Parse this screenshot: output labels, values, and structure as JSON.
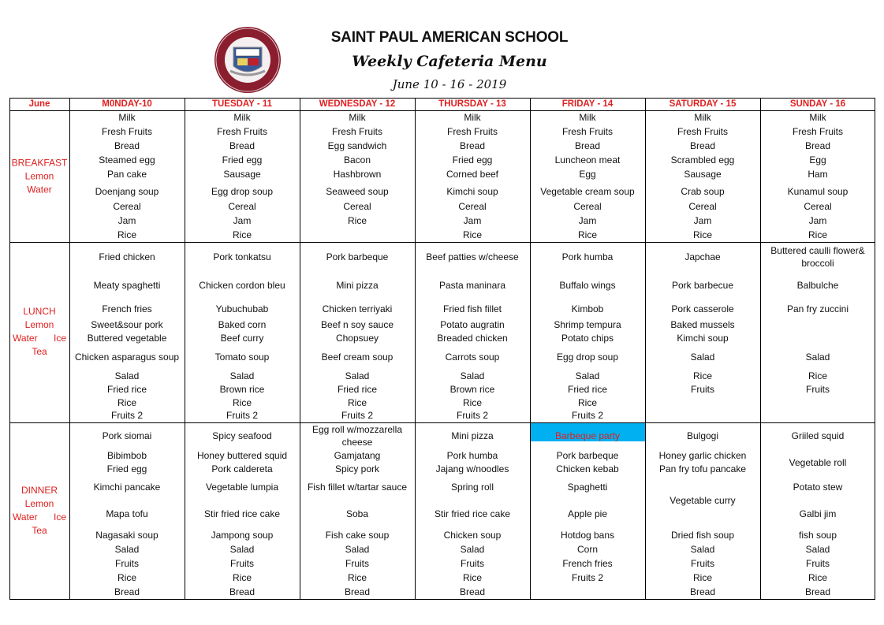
{
  "header": {
    "school": "SAINT PAUL AMERICAN SCHOOL",
    "subtitle": "Weekly Cafeteria Menu",
    "dates": "June 10 - 16 - 2019",
    "logo_text": "SAINT PAUL AMERICAN SCHOOL"
  },
  "table": {
    "corner": "June",
    "days": [
      "M0NDAY-10",
      "TUESDAY - 11",
      "WEDNESDAY - 12",
      "THURSDAY - 13",
      "FRIDAY - 14",
      "SATURDAY - 15",
      "SUNDAY - 16"
    ],
    "meals": [
      {
        "key": "breakfast",
        "label_lines": [
          "BREAKFAST",
          "Lemon",
          "Water"
        ],
        "columns": [
          [
            "Milk",
            "Fresh Fruits",
            "Bread",
            "Steamed egg",
            "Pan cake",
            "Doenjang soup",
            "Cereal",
            "Jam",
            "Rice"
          ],
          [
            "Milk",
            "Fresh Fruits",
            "Bread",
            "Fried egg",
            "Sausage",
            "Egg drop soup",
            "Cereal",
            "Jam",
            "Rice"
          ],
          [
            "Milk",
            "Fresh Fruits",
            "Egg sandwich",
            "Bacon",
            "Hashbrown",
            "Seaweed soup",
            "Cereal",
            "Rice",
            ""
          ],
          [
            "Milk",
            "Fresh Fruits",
            "Bread",
            "Fried egg",
            "Corned beef",
            "Kimchi soup",
            "Cereal",
            "Jam",
            "Rice"
          ],
          [
            "Milk",
            "Fresh Fruits",
            "Bread",
            "Luncheon meat",
            "Egg",
            "Vegetable cream soup",
            "Cereal",
            "Jam",
            "Rice"
          ],
          [
            "Milk",
            "Fresh Fruits",
            "Bread",
            "Scrambled egg",
            "Sausage",
            "Crab soup",
            "Cereal",
            "Jam",
            "Rice"
          ],
          [
            "Milk",
            "Fresh Fruits",
            "Bread",
            "Egg",
            "Ham",
            "Kunamul soup",
            "Cereal",
            "Jam",
            "Rice"
          ]
        ]
      },
      {
        "key": "lunch",
        "label_lines": [
          "LUNCH",
          "Lemon",
          "Water Ice",
          "Tea"
        ],
        "columns": [
          [
            "Fried chicken",
            "Meaty spaghetti",
            "French fries",
            "Sweet&sour pork",
            "Buttered vegetable",
            "Chicken asparagus soup",
            "Salad",
            "Fried rice",
            "Rice",
            "Fruits 2"
          ],
          [
            "Pork tonkatsu",
            "Chicken cordon bleu",
            "Yubuchubab",
            "Baked corn",
            "Beef curry",
            "Tomato soup",
            "Salad",
            "Brown rice",
            "Rice",
            "Fruits 2"
          ],
          [
            "Pork barbeque",
            "Mini pizza",
            "Chicken terriyaki",
            "Beef n soy sauce",
            "Chopsuey",
            "Beef cream soup",
            "Salad",
            "Fried rice",
            "Rice",
            "Fruits 2"
          ],
          [
            "Beef patties w/cheese",
            "Pasta maninara",
            "Fried fish fillet",
            "Potato augratin",
            "Breaded chicken",
            "Carrots soup",
            "Salad",
            "Brown rice",
            "Rice",
            "Fruits 2"
          ],
          [
            "Pork humba",
            "Buffalo wings",
            "Kimbob",
            "Shrimp tempura",
            "Potato chips",
            "Egg drop soup",
            "Salad",
            "Fried rice",
            "Rice",
            "Fruits 2"
          ],
          [
            "Japchae",
            "Pork barbecue",
            "Pork casserole",
            "Baked mussels",
            "Kimchi soup",
            "Salad",
            "Rice",
            "Fruits",
            "",
            ""
          ],
          [
            "Buttered caulli flower& broccoli",
            "Balbulche",
            "Pan fry zuccini",
            "",
            "",
            "Salad",
            "Rice",
            "Fruits",
            "",
            ""
          ]
        ]
      },
      {
        "key": "dinner",
        "label_lines": [
          "DINNER",
          "Lemon",
          "Water Ice",
          "Tea"
        ],
        "columns": [
          [
            "Pork siomai",
            "Bibimbob",
            "Fried egg",
            "Kimchi pancake",
            "Mapa tofu",
            "Nagasaki soup",
            "Salad",
            "Fruits",
            "Rice",
            "Bread"
          ],
          [
            "Spicy seafood",
            "Honey buttered squid",
            "Pork caldereta",
            "Vegetable lumpia",
            "Stir fried rice cake",
            "Jampong soup",
            "Salad",
            "Fruits",
            "Rice",
            "Bread"
          ],
          [
            "Egg roll w/mozzarella cheese",
            "Gamjatang",
            "Spicy pork",
            "Fish fillet w/tartar sauce",
            "Soba",
            "Fish cake soup",
            "Salad",
            "Fruits",
            "Rice",
            "Bread"
          ],
          [
            "Mini pizza",
            "Pork humba",
            "Jajang w/noodles",
            "Spring roll",
            "Stir fried rice cake",
            "Chicken soup",
            "Salad",
            "Fruits",
            "Rice",
            "Bread"
          ],
          [
            "Barbeque party",
            "Pork barbeque",
            "Chicken kebab",
            "Spaghetti",
            "Apple pie",
            "Hotdog bans",
            "Corn",
            "French fries",
            "Fruits 2",
            ""
          ],
          [
            "Bulgogi",
            "Honey garlic chicken",
            "Pan fry tofu pancake",
            "Vegetable curry",
            null,
            "Dried fish soup",
            "Salad",
            "Fruits",
            "Rice",
            "Bread"
          ],
          [
            "Griiled squid",
            "Vegetable roll",
            null,
            "Potato stew",
            "Galbi jim",
            "fish soup",
            "Salad",
            "Fruits",
            "Rice",
            "Bread"
          ]
        ]
      }
    ],
    "highlight": {
      "meal": "dinner",
      "day_index": 4,
      "slot": 0,
      "bg": "#00b0f0",
      "text_color": "#e02020"
    }
  },
  "colors": {
    "accent_red": "#e02020",
    "logo_maroon": "#8b1e2e",
    "border": "#000000"
  }
}
